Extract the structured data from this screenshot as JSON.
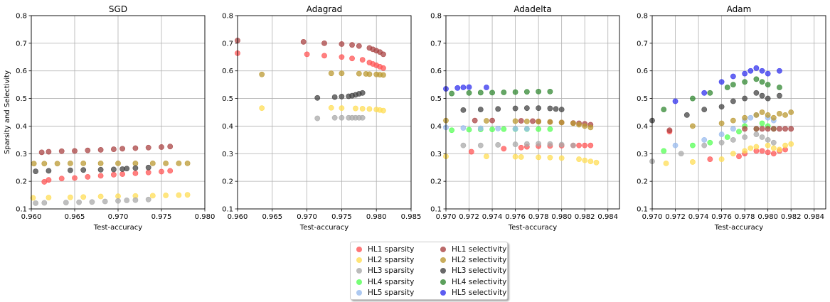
{
  "legend": {
    "placement": "bottom-center",
    "items": [
      {
        "label": "HL1 sparsity",
        "color": "#ff5555"
      },
      {
        "label": "HL2 sparsity",
        "color": "#ffdd55"
      },
      {
        "label": "HL3 sparsity",
        "color": "#aaaaaa"
      },
      {
        "label": "HL4 sparsity",
        "color": "#55ff55"
      },
      {
        "label": "HL5 sparsity",
        "color": "#99bbee"
      },
      {
        "label": "HL1 selectivity",
        "color": "#aa4444"
      },
      {
        "label": "HL2 selectivity",
        "color": "#bb9933"
      },
      {
        "label": "HL3 selectivity",
        "color": "#444444"
      },
      {
        "label": "HL4 selectivity",
        "color": "#338833"
      },
      {
        "label": "HL5 selectivity",
        "color": "#3333ee"
      }
    ]
  },
  "chart_data": [
    {
      "type": "scatter",
      "title": "SGD",
      "xlabel": "Test-accuracy",
      "ylabel": "Sparsity and Selectivity",
      "xlim": [
        0.96,
        0.98
      ],
      "ylim": [
        0.1,
        0.8
      ],
      "xticks": [
        "0.960",
        "0.965",
        "0.970",
        "0.975",
        "0.980"
      ],
      "yticks": [
        "0.1",
        "0.2",
        "0.3",
        "0.4",
        "0.5",
        "0.6",
        "0.7",
        "0.8"
      ],
      "grid": true,
      "series": [
        {
          "name": "HL1 sparsity",
          "x": [
            0.9615,
            0.962,
            0.9635,
            0.965,
            0.9665,
            0.968,
            0.9695,
            0.9705,
            0.972,
            0.9735,
            0.975,
            0.976
          ],
          "y": [
            0.198,
            0.205,
            0.21,
            0.212,
            0.216,
            0.22,
            0.224,
            0.226,
            0.229,
            0.232,
            0.235,
            0.238
          ]
        },
        {
          "name": "HL2 sparsity",
          "x": [
            0.9602,
            0.962,
            0.9645,
            0.966,
            0.968,
            0.97,
            0.972,
            0.974,
            0.9755,
            0.977,
            0.978
          ],
          "y": [
            0.14,
            0.141,
            0.142,
            0.143,
            0.145,
            0.146,
            0.147,
            0.148,
            0.149,
            0.15,
            0.151
          ]
        },
        {
          "name": "HL3 sparsity",
          "x": [
            0.9605,
            0.9615,
            0.964,
            0.9655,
            0.967,
            0.9685,
            0.97,
            0.971,
            0.972,
            0.9735
          ],
          "y": [
            0.121,
            0.122,
            0.123,
            0.124,
            0.125,
            0.127,
            0.129,
            0.131,
            0.132,
            0.134
          ]
        },
        {
          "name": "HL1 selectivity",
          "x": [
            0.9612,
            0.962,
            0.9635,
            0.965,
            0.9665,
            0.968,
            0.9695,
            0.9705,
            0.972,
            0.9735,
            0.975,
            0.976
          ],
          "y": [
            0.305,
            0.307,
            0.309,
            0.31,
            0.312,
            0.314,
            0.316,
            0.318,
            0.32,
            0.322,
            0.324,
            0.326
          ]
        },
        {
          "name": "HL2 selectivity",
          "x": [
            0.9603,
            0.9615,
            0.963,
            0.9645,
            0.966,
            0.968,
            0.97,
            0.972,
            0.974,
            0.9755,
            0.977,
            0.978
          ],
          "y": [
            0.264,
            0.264,
            0.264,
            0.265,
            0.265,
            0.265,
            0.265,
            0.265,
            0.265,
            0.265,
            0.265,
            0.265
          ]
        },
        {
          "name": "HL3 selectivity",
          "x": [
            0.9605,
            0.962,
            0.9645,
            0.966,
            0.968,
            0.9695,
            0.9705,
            0.971,
            0.972,
            0.9735
          ],
          "y": [
            0.236,
            0.238,
            0.24,
            0.241,
            0.242,
            0.243,
            0.244,
            0.246,
            0.248,
            0.25
          ]
        }
      ]
    },
    {
      "type": "scatter",
      "title": "Adagrad",
      "xlabel": "Test-accuracy",
      "ylabel": "",
      "xlim": [
        0.96,
        0.985
      ],
      "ylim": [
        0.1,
        0.8
      ],
      "xticks": [
        "0.960",
        "0.965",
        "0.970",
        "0.975",
        "0.980",
        "0.985"
      ],
      "yticks": [
        "0.1",
        "0.2",
        "0.3",
        "0.4",
        "0.5",
        "0.6",
        "0.7",
        "0.8"
      ],
      "grid": true,
      "series": [
        {
          "name": "HL1 sparsity",
          "x": [
            0.96,
            0.97,
            0.9725,
            0.975,
            0.9765,
            0.978,
            0.979,
            0.9795,
            0.98,
            0.9805,
            0.981
          ],
          "y": [
            0.664,
            0.66,
            0.655,
            0.65,
            0.645,
            0.64,
            0.63,
            0.625,
            0.62,
            0.615,
            0.61
          ]
        },
        {
          "name": "HL2 sparsity",
          "x": [
            0.9635,
            0.9735,
            0.975,
            0.977,
            0.978,
            0.979,
            0.98,
            0.9805,
            0.981
          ],
          "y": [
            0.465,
            0.466,
            0.465,
            0.464,
            0.463,
            0.462,
            0.46,
            0.458,
            0.456
          ]
        },
        {
          "name": "HL3 sparsity",
          "x": [
            0.9715,
            0.974,
            0.975,
            0.976,
            0.9765,
            0.977,
            0.9775,
            0.978
          ],
          "y": [
            0.428,
            0.43,
            0.43,
            0.43,
            0.43,
            0.43,
            0.43,
            0.43
          ]
        },
        {
          "name": "HL1 selectivity",
          "x": [
            0.96,
            0.9695,
            0.9725,
            0.975,
            0.9765,
            0.9775,
            0.979,
            0.9795,
            0.98,
            0.9805,
            0.981
          ],
          "y": [
            0.71,
            0.705,
            0.7,
            0.697,
            0.694,
            0.69,
            0.683,
            0.678,
            0.673,
            0.668,
            0.66
          ]
        },
        {
          "name": "HL2 selectivity",
          "x": [
            0.9635,
            0.9735,
            0.975,
            0.9775,
            0.9785,
            0.979,
            0.98,
            0.9805,
            0.981
          ],
          "y": [
            0.587,
            0.591,
            0.591,
            0.59,
            0.589,
            0.588,
            0.587,
            0.586,
            0.585
          ]
        },
        {
          "name": "HL3 selectivity",
          "x": [
            0.9715,
            0.974,
            0.975,
            0.976,
            0.9765,
            0.977,
            0.9775,
            0.978
          ],
          "y": [
            0.502,
            0.505,
            0.507,
            0.508,
            0.51,
            0.513,
            0.517,
            0.52
          ]
        }
      ]
    },
    {
      "type": "scatter",
      "title": "Adadelta",
      "xlabel": "Test-accuracy",
      "ylabel": "",
      "xlim": [
        0.97,
        0.985
      ],
      "ylim": [
        0.1,
        0.8
      ],
      "xticks": [
        "0.970",
        "0.972",
        "0.974",
        "0.976",
        "0.978",
        "0.980",
        "0.982",
        "0.984"
      ],
      "yticks": [
        "0.1",
        "0.2",
        "0.3",
        "0.4",
        "0.5",
        "0.6",
        "0.7",
        "0.8"
      ],
      "grid": true,
      "series": [
        {
          "name": "HL1 sparsity",
          "x": [
            0.9722,
            0.975,
            0.9765,
            0.977,
            0.978,
            0.979,
            0.98,
            0.981,
            0.9815,
            0.982,
            0.9825
          ],
          "y": [
            0.307,
            0.318,
            0.322,
            0.325,
            0.327,
            0.328,
            0.329,
            0.33,
            0.33,
            0.33,
            0.33
          ]
        },
        {
          "name": "HL2 sparsity",
          "x": [
            0.97,
            0.9735,
            0.976,
            0.9765,
            0.978,
            0.979,
            0.98,
            0.9815,
            0.982,
            0.9825,
            0.983
          ],
          "y": [
            0.29,
            0.29,
            0.289,
            0.288,
            0.287,
            0.286,
            0.284,
            0.28,
            0.276,
            0.272,
            0.268
          ]
        },
        {
          "name": "HL3 sparsity",
          "x": [
            0.9715,
            0.973,
            0.9745,
            0.976,
            0.977,
            0.978,
            0.979,
            0.98,
            0.981
          ],
          "y": [
            0.33,
            0.33,
            0.332,
            0.334,
            0.335,
            0.336,
            0.335,
            0.333,
            0.33
          ]
        },
        {
          "name": "HL4 sparsity",
          "x": [
            0.9705,
            0.972,
            0.973,
            0.974,
            0.975,
            0.976,
            0.977,
            0.978,
            0.979
          ],
          "y": [
            0.385,
            0.387,
            0.388,
            0.388,
            0.389,
            0.389,
            0.389,
            0.389,
            0.389
          ]
        },
        {
          "name": "HL5 sparsity",
          "x": [
            0.97,
            0.9715,
            0.973,
            0.9745,
            0.976,
            0.977
          ],
          "y": [
            0.395,
            0.393,
            0.392,
            0.391,
            0.39,
            0.39
          ]
        },
        {
          "name": "HL1 selectivity",
          "x": [
            0.9725,
            0.974,
            0.9765,
            0.9775,
            0.978,
            0.979,
            0.98,
            0.981,
            0.9815,
            0.982,
            0.9825
          ],
          "y": [
            0.42,
            0.42,
            0.419,
            0.418,
            0.417,
            0.415,
            0.413,
            0.411,
            0.41,
            0.408,
            0.405
          ]
        },
        {
          "name": "HL2 selectivity",
          "x": [
            0.97,
            0.9735,
            0.976,
            0.977,
            0.978,
            0.979,
            0.98,
            0.981,
            0.9815,
            0.982,
            0.9825
          ],
          "y": [
            0.42,
            0.419,
            0.418,
            0.417,
            0.416,
            0.415,
            0.413,
            0.41,
            0.405,
            0.4,
            0.395
          ]
        },
        {
          "name": "HL3 selectivity",
          "x": [
            0.9715,
            0.973,
            0.9745,
            0.976,
            0.977,
            0.978,
            0.979,
            0.9795,
            0.98
          ],
          "y": [
            0.458,
            0.46,
            0.462,
            0.464,
            0.465,
            0.465,
            0.464,
            0.462,
            0.46
          ]
        },
        {
          "name": "HL4 selectivity",
          "x": [
            0.9705,
            0.972,
            0.973,
            0.974,
            0.975,
            0.976,
            0.977,
            0.978,
            0.979
          ],
          "y": [
            0.518,
            0.52,
            0.521,
            0.521,
            0.522,
            0.523,
            0.524,
            0.525,
            0.525
          ]
        },
        {
          "name": "HL5 selectivity",
          "x": [
            0.97,
            0.971,
            0.9715,
            0.972,
            0.9735
          ],
          "y": [
            0.535,
            0.538,
            0.54,
            0.541,
            0.54
          ]
        }
      ]
    },
    {
      "type": "scatter",
      "title": "Adam",
      "xlabel": "Test-accuracy",
      "ylabel": "",
      "xlim": [
        0.97,
        0.985
      ],
      "ylim": [
        0.1,
        0.8
      ],
      "xticks": [
        "0.970",
        "0.972",
        "0.974",
        "0.976",
        "0.978",
        "0.980",
        "0.982",
        "0.984"
      ],
      "yticks": [
        "0.1",
        "0.2",
        "0.3",
        "0.4",
        "0.5",
        "0.6",
        "0.7",
        "0.8"
      ],
      "grid": true,
      "series": [
        {
          "name": "HL1 sparsity",
          "x": [
            0.9715,
            0.975,
            0.9775,
            0.978,
            0.979,
            0.9795,
            0.98,
            0.9805,
            0.981,
            0.9815
          ],
          "y": [
            0.38,
            0.28,
            0.29,
            0.3,
            0.31,
            0.31,
            0.305,
            0.3,
            0.31,
            0.315
          ]
        },
        {
          "name": "HL2 sparsity",
          "x": [
            0.9712,
            0.9735,
            0.976,
            0.977,
            0.978,
            0.9785,
            0.979,
            0.98,
            0.9805,
            0.981,
            0.9815,
            0.982
          ],
          "y": [
            0.265,
            0.27,
            0.28,
            0.3,
            0.31,
            0.32,
            0.325,
            0.33,
            0.32,
            0.315,
            0.33,
            0.335
          ]
        },
        {
          "name": "HL3 sparsity",
          "x": [
            0.97,
            0.9725,
            0.9745,
            0.976,
            0.977,
            0.978,
            0.979,
            0.9795,
            0.98,
            0.9805
          ],
          "y": [
            0.272,
            0.3,
            0.33,
            0.34,
            0.35,
            0.36,
            0.37,
            0.36,
            0.35,
            0.34
          ]
        },
        {
          "name": "HL4 sparsity",
          "x": [
            0.971,
            0.9735,
            0.975,
            0.9765,
            0.9775,
            0.978,
            0.979,
            0.9795,
            0.98,
            0.9805
          ],
          "y": [
            0.31,
            0.33,
            0.34,
            0.36,
            0.38,
            0.4,
            0.39,
            0.41,
            0.4,
            0.39
          ]
        },
        {
          "name": "HL5 sparsity",
          "x": [
            0.972,
            0.9745,
            0.976,
            0.977,
            0.978,
            0.9785,
            0.979,
            0.98,
            0.9805
          ],
          "y": [
            0.33,
            0.35,
            0.37,
            0.39,
            0.42,
            0.43,
            0.44,
            0.43,
            0.42
          ]
        },
        {
          "name": "HL1 selectivity",
          "x": [
            0.9715,
            0.978,
            0.979,
            0.9795,
            0.98,
            0.9805,
            0.981,
            0.9815,
            0.982
          ],
          "y": [
            0.385,
            0.39,
            0.39,
            0.39,
            0.39,
            0.39,
            0.39,
            0.39,
            0.39
          ]
        },
        {
          "name": "HL2 selectivity",
          "x": [
            0.9735,
            0.976,
            0.977,
            0.978,
            0.979,
            0.9795,
            0.98,
            0.9805,
            0.981,
            0.9815,
            0.982
          ],
          "y": [
            0.4,
            0.41,
            0.42,
            0.43,
            0.44,
            0.45,
            0.44,
            0.43,
            0.445,
            0.44,
            0.45
          ]
        },
        {
          "name": "HL3 selectivity",
          "x": [
            0.97,
            0.973,
            0.9745,
            0.976,
            0.977,
            0.978,
            0.979,
            0.9795,
            0.98,
            0.981
          ],
          "y": [
            0.42,
            0.44,
            0.46,
            0.47,
            0.49,
            0.5,
            0.52,
            0.51,
            0.5,
            0.51
          ]
        },
        {
          "name": "HL4 selectivity",
          "x": [
            0.971,
            0.9735,
            0.975,
            0.9765,
            0.977,
            0.978,
            0.979,
            0.9795,
            0.98,
            0.981
          ],
          "y": [
            0.46,
            0.5,
            0.52,
            0.54,
            0.55,
            0.56,
            0.57,
            0.56,
            0.55,
            0.54
          ]
        },
        {
          "name": "HL5 selectivity",
          "x": [
            0.972,
            0.9745,
            0.976,
            0.977,
            0.978,
            0.9785,
            0.979,
            0.9795,
            0.98,
            0.981
          ],
          "y": [
            0.49,
            0.52,
            0.56,
            0.58,
            0.59,
            0.6,
            0.61,
            0.6,
            0.59,
            0.6
          ]
        }
      ]
    }
  ]
}
